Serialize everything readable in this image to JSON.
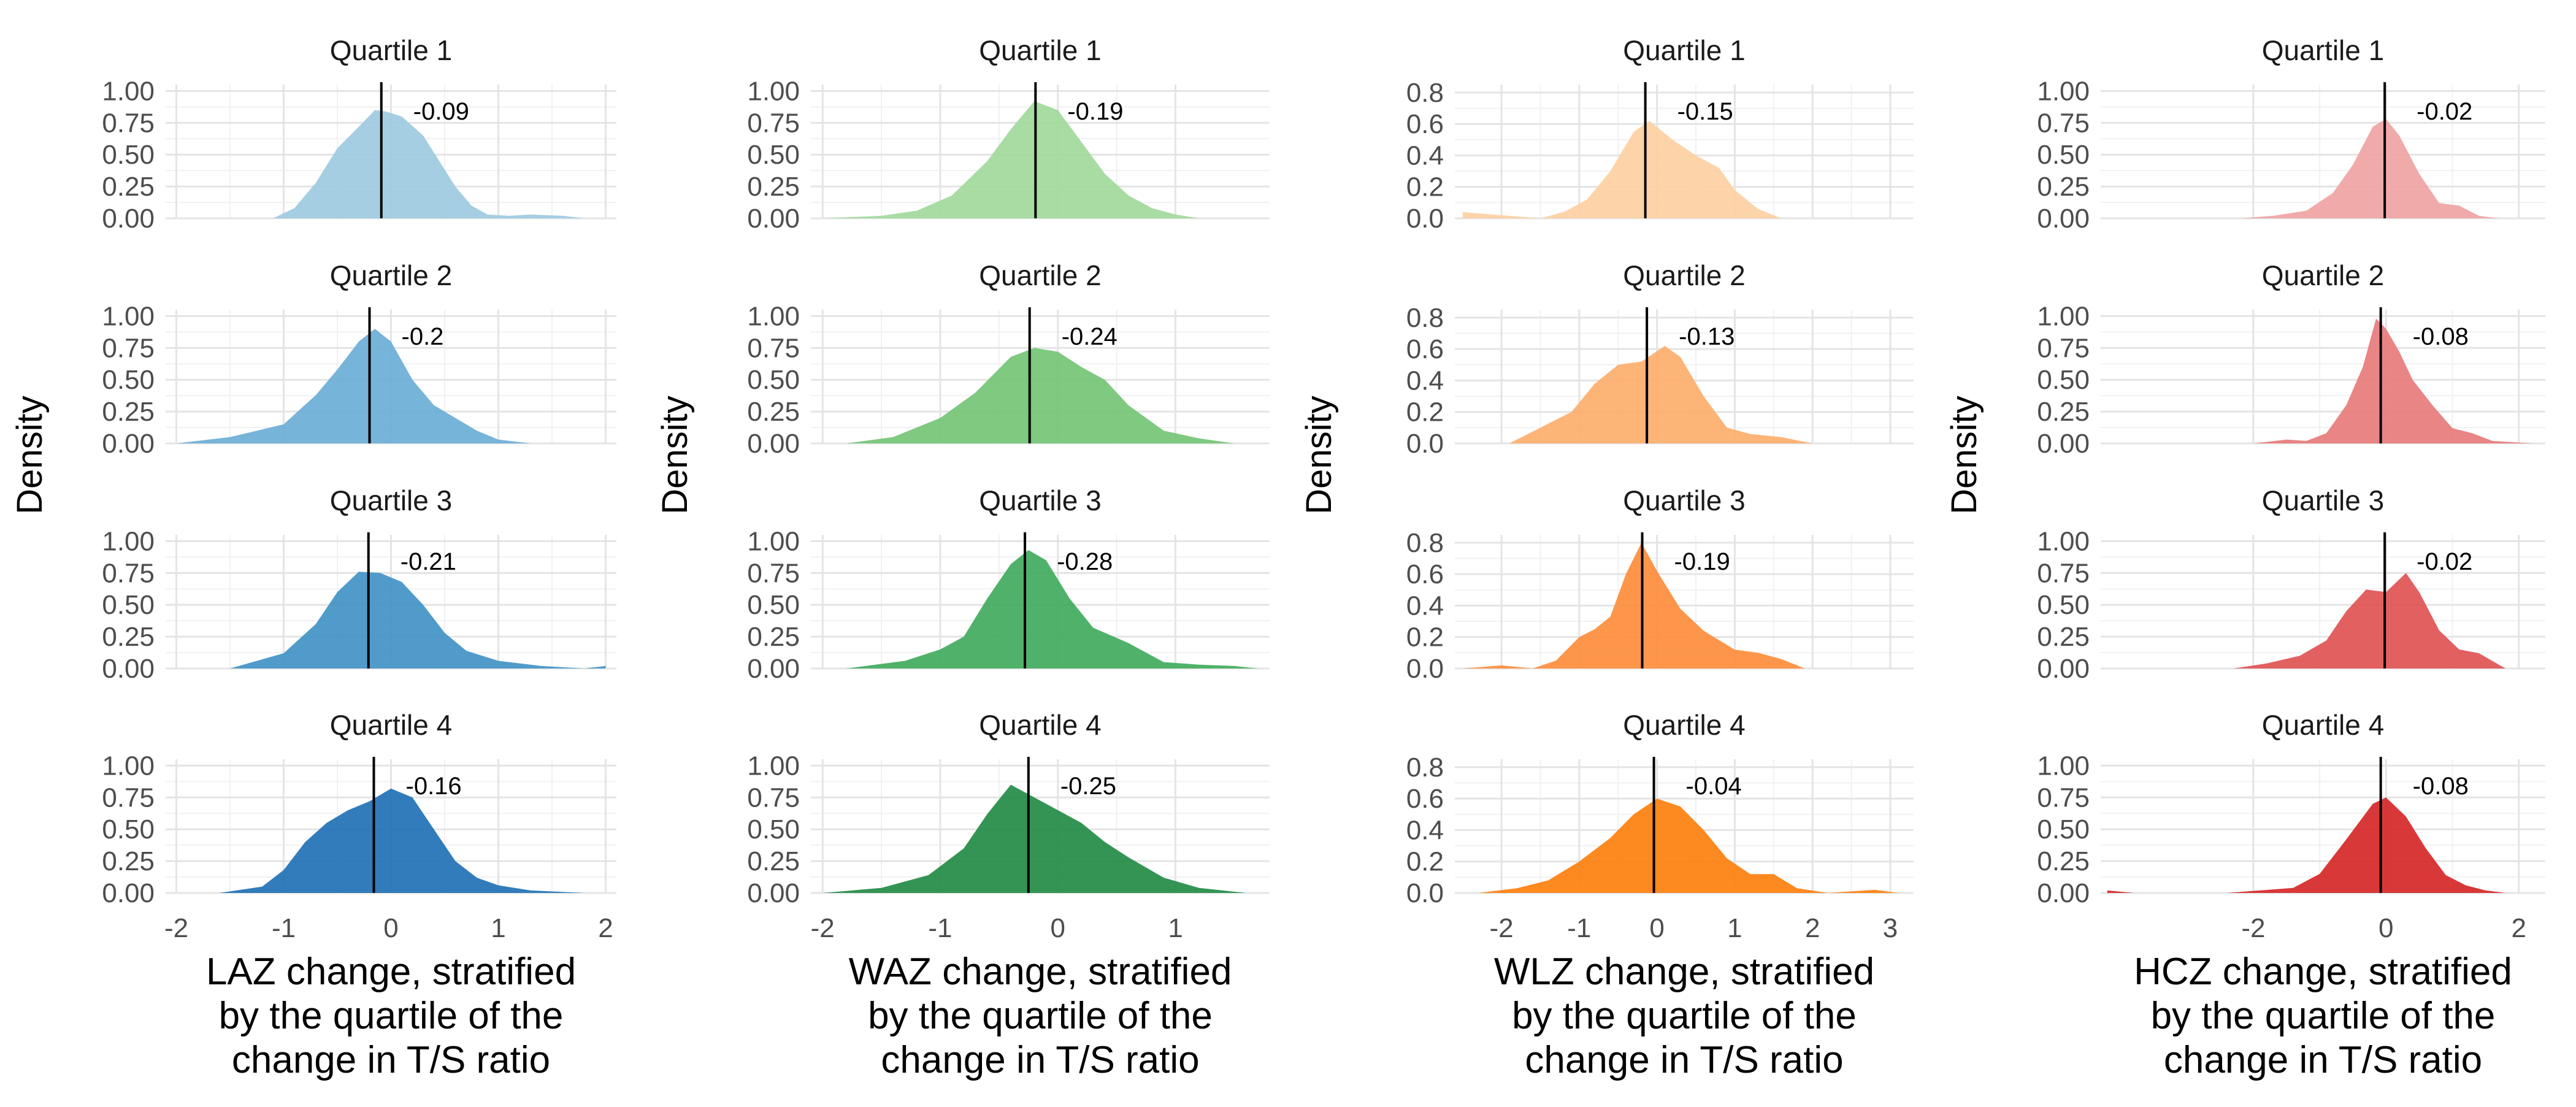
{
  "chart_data": [
    {
      "type": "area",
      "ylabel": "Density",
      "xlabel": "LAZ change, stratified\nby the quartile of the\nchange in T/S ratio",
      "xlim": [
        -2.1,
        2.1
      ],
      "xticks": [
        -2,
        -1,
        0,
        1,
        2
      ],
      "ylim": [
        0,
        1.05
      ],
      "yticks": [
        "0.00",
        "0.25",
        "0.50",
        "0.75",
        "1.00"
      ],
      "grid": true,
      "facets": [
        {
          "title": "Quartile 1",
          "color": "#9ecae1",
          "median_label": "-0.09",
          "median_x": -0.09,
          "x": [
            -1.1,
            -0.9,
            -0.7,
            -0.5,
            -0.3,
            -0.15,
            -0.05,
            0.1,
            0.3,
            0.45,
            0.6,
            0.75,
            0.9,
            1.1,
            1.3,
            1.6,
            1.8
          ],
          "y": [
            0.0,
            0.08,
            0.28,
            0.55,
            0.72,
            0.85,
            0.84,
            0.8,
            0.65,
            0.45,
            0.25,
            0.1,
            0.03,
            0.02,
            0.03,
            0.02,
            0.0
          ]
        },
        {
          "title": "Quartile 2",
          "color": "#6baed6",
          "median_label": "-0.2",
          "median_x": -0.2,
          "x": [
            -2.0,
            -1.5,
            -1.0,
            -0.7,
            -0.5,
            -0.3,
            -0.15,
            0.0,
            0.2,
            0.4,
            0.6,
            0.8,
            1.0,
            1.3
          ],
          "y": [
            0.0,
            0.05,
            0.15,
            0.38,
            0.58,
            0.8,
            0.9,
            0.8,
            0.5,
            0.3,
            0.2,
            0.1,
            0.03,
            0.0
          ]
        },
        {
          "title": "Quartile 3",
          "color": "#4292c6",
          "median_label": "-0.21",
          "median_x": -0.21,
          "x": [
            -1.5,
            -1.0,
            -0.7,
            -0.5,
            -0.3,
            -0.1,
            0.1,
            0.3,
            0.5,
            0.7,
            1.0,
            1.4,
            1.8,
            2.0
          ],
          "y": [
            0.0,
            0.12,
            0.35,
            0.6,
            0.76,
            0.75,
            0.68,
            0.5,
            0.28,
            0.14,
            0.06,
            0.02,
            0.0,
            0.02
          ]
        },
        {
          "title": "Quartile 4",
          "color": "#2171b5",
          "median_label": "-0.16",
          "median_x": -0.16,
          "x": [
            -1.6,
            -1.2,
            -1.0,
            -0.8,
            -0.6,
            -0.4,
            -0.2,
            0.0,
            0.2,
            0.4,
            0.6,
            0.8,
            1.0,
            1.3,
            1.8
          ],
          "y": [
            0.0,
            0.05,
            0.18,
            0.4,
            0.55,
            0.65,
            0.72,
            0.82,
            0.75,
            0.5,
            0.25,
            0.12,
            0.06,
            0.02,
            0.0
          ]
        }
      ]
    },
    {
      "type": "area",
      "ylabel": "Density",
      "xlabel": "WAZ change, stratified\nby the quartile of the\nchange in T/S ratio",
      "xlim": [
        -2.1,
        1.8
      ],
      "xticks": [
        -2,
        -1,
        0,
        1
      ],
      "ylim": [
        0,
        1.05
      ],
      "yticks": [
        "0.00",
        "0.25",
        "0.50",
        "0.75",
        "1.00"
      ],
      "grid": true,
      "facets": [
        {
          "title": "Quartile 1",
          "color": "#a1d99b",
          "median_label": "-0.19",
          "median_x": -0.19,
          "x": [
            -2.0,
            -1.5,
            -1.2,
            -0.9,
            -0.6,
            -0.4,
            -0.2,
            0.0,
            0.2,
            0.4,
            0.6,
            0.8,
            1.0,
            1.2
          ],
          "y": [
            0.0,
            0.02,
            0.06,
            0.18,
            0.45,
            0.7,
            0.92,
            0.85,
            0.6,
            0.35,
            0.18,
            0.08,
            0.03,
            0.0
          ]
        },
        {
          "title": "Quartile 2",
          "color": "#74c476",
          "median_label": "-0.24",
          "median_x": -0.24,
          "x": [
            -1.8,
            -1.4,
            -1.0,
            -0.7,
            -0.4,
            -0.2,
            0.0,
            0.2,
            0.4,
            0.6,
            0.9,
            1.2,
            1.5
          ],
          "y": [
            0.0,
            0.05,
            0.2,
            0.4,
            0.68,
            0.75,
            0.72,
            0.6,
            0.5,
            0.3,
            0.1,
            0.04,
            0.0
          ]
        },
        {
          "title": "Quartile 3",
          "color": "#41ab5d",
          "median_label": "-0.28",
          "median_x": -0.28,
          "x": [
            -1.8,
            -1.3,
            -1.0,
            -0.8,
            -0.6,
            -0.4,
            -0.25,
            -0.1,
            0.1,
            0.3,
            0.6,
            0.9,
            1.2,
            1.5,
            1.7
          ],
          "y": [
            0.0,
            0.06,
            0.15,
            0.25,
            0.55,
            0.82,
            0.93,
            0.85,
            0.55,
            0.32,
            0.2,
            0.05,
            0.03,
            0.02,
            0.0
          ]
        },
        {
          "title": "Quartile 4",
          "color": "#238b45",
          "median_label": "-0.25",
          "median_x": -0.25,
          "x": [
            -2.0,
            -1.5,
            -1.1,
            -0.8,
            -0.6,
            -0.4,
            -0.2,
            0.0,
            0.2,
            0.4,
            0.6,
            0.9,
            1.2,
            1.6
          ],
          "y": [
            0.0,
            0.04,
            0.14,
            0.35,
            0.62,
            0.85,
            0.75,
            0.65,
            0.55,
            0.4,
            0.28,
            0.12,
            0.04,
            0.0
          ]
        }
      ]
    },
    {
      "type": "area",
      "ylabel": "Density",
      "xlabel": "WLZ change, stratified\nby the quartile of the\nchange in T/S ratio",
      "xlim": [
        -2.6,
        3.3
      ],
      "xticks": [
        -2,
        -1,
        0,
        1,
        2,
        3
      ],
      "ylim": [
        0,
        0.85
      ],
      "yticks": [
        "0.0",
        "0.2",
        "0.4",
        "0.6",
        "0.8"
      ],
      "grid": true,
      "facets": [
        {
          "title": "Quartile 1",
          "color": "#fdd0a2",
          "median_label": "-0.15",
          "median_x": -0.15,
          "x": [
            -2.5,
            -2.0,
            -1.5,
            -1.2,
            -0.9,
            -0.6,
            -0.3,
            -0.1,
            0.2,
            0.5,
            0.8,
            1.0,
            1.3,
            1.6
          ],
          "y": [
            0.04,
            0.02,
            0.0,
            0.04,
            0.12,
            0.3,
            0.55,
            0.62,
            0.5,
            0.4,
            0.32,
            0.18,
            0.06,
            0.0
          ]
        },
        {
          "title": "Quartile 2",
          "color": "#fdae6b",
          "median_label": "-0.13",
          "median_x": -0.13,
          "x": [
            -1.9,
            -1.5,
            -1.1,
            -0.8,
            -0.5,
            -0.2,
            0.1,
            0.3,
            0.6,
            0.9,
            1.2,
            1.6,
            2.0
          ],
          "y": [
            0.0,
            0.1,
            0.2,
            0.38,
            0.5,
            0.52,
            0.62,
            0.55,
            0.3,
            0.1,
            0.06,
            0.04,
            0.0
          ]
        },
        {
          "title": "Quartile 3",
          "color": "#fd8d3c",
          "median_label": "-0.19",
          "median_x": -0.19,
          "x": [
            -2.5,
            -2.0,
            -1.6,
            -1.3,
            -1.0,
            -0.8,
            -0.6,
            -0.4,
            -0.2,
            0.0,
            0.3,
            0.6,
            1.0,
            1.3,
            1.6,
            1.9
          ],
          "y": [
            0.0,
            0.02,
            0.0,
            0.05,
            0.2,
            0.25,
            0.33,
            0.6,
            0.8,
            0.62,
            0.38,
            0.24,
            0.12,
            0.1,
            0.06,
            0.0
          ]
        },
        {
          "title": "Quartile 4",
          "color": "#fd7f0e",
          "median_label": "-0.04",
          "median_x": -0.04,
          "x": [
            -2.3,
            -1.8,
            -1.4,
            -1.0,
            -0.6,
            -0.3,
            0.0,
            0.3,
            0.6,
            0.9,
            1.2,
            1.5,
            1.8,
            2.2,
            2.8,
            3.1
          ],
          "y": [
            0.0,
            0.03,
            0.08,
            0.2,
            0.35,
            0.5,
            0.6,
            0.55,
            0.4,
            0.22,
            0.12,
            0.12,
            0.03,
            0.0,
            0.02,
            0.0
          ]
        }
      ]
    },
    {
      "type": "area",
      "ylabel": "Density",
      "xlabel": "HCZ change, stratified\nby the quartile of the\nchange in T/S ratio",
      "xlim": [
        -4.3,
        2.4
      ],
      "xticks": [
        -2,
        0,
        2
      ],
      "ylim": [
        0,
        1.05
      ],
      "yticks": [
        "0.00",
        "0.25",
        "0.50",
        "0.75",
        "1.00"
      ],
      "grid": true,
      "facets": [
        {
          "title": "Quartile 1",
          "color": "#f0a3a3",
          "median_label": "-0.02",
          "median_x": -0.02,
          "x": [
            -2.2,
            -1.7,
            -1.2,
            -0.8,
            -0.5,
            -0.2,
            0.0,
            0.2,
            0.5,
            0.8,
            1.1,
            1.4,
            1.7
          ],
          "y": [
            0.0,
            0.02,
            0.06,
            0.2,
            0.42,
            0.72,
            0.78,
            0.65,
            0.35,
            0.12,
            0.1,
            0.02,
            0.0
          ]
        },
        {
          "title": "Quartile 2",
          "color": "#e77b7b",
          "median_label": "-0.08",
          "median_x": -0.08,
          "x": [
            -2.0,
            -1.5,
            -1.2,
            -0.9,
            -0.6,
            -0.35,
            -0.15,
            0.0,
            0.2,
            0.4,
            0.7,
            1.0,
            1.3,
            1.6,
            2.2
          ],
          "y": [
            0.0,
            0.03,
            0.02,
            0.08,
            0.3,
            0.6,
            0.98,
            0.9,
            0.72,
            0.5,
            0.3,
            0.12,
            0.08,
            0.02,
            0.0
          ]
        },
        {
          "title": "Quartile 3",
          "color": "#e05252",
          "median_label": "-0.02",
          "median_x": -0.02,
          "x": [
            -2.3,
            -1.8,
            -1.3,
            -0.9,
            -0.6,
            -0.3,
            0.0,
            0.3,
            0.5,
            0.8,
            1.1,
            1.4,
            1.8
          ],
          "y": [
            0.0,
            0.04,
            0.1,
            0.22,
            0.45,
            0.62,
            0.6,
            0.75,
            0.6,
            0.3,
            0.15,
            0.12,
            0.0
          ]
        },
        {
          "title": "Quartile 4",
          "color": "#d62728",
          "median_label": "-0.08",
          "median_x": -0.08,
          "x": [
            -4.2,
            -3.8,
            -3.4,
            -2.4,
            -1.9,
            -1.4,
            -1.0,
            -0.6,
            -0.2,
            0.0,
            0.3,
            0.6,
            0.9,
            1.2,
            1.5,
            1.8
          ],
          "y": [
            0.02,
            0.0,
            0.0,
            0.0,
            0.02,
            0.04,
            0.15,
            0.42,
            0.7,
            0.75,
            0.6,
            0.35,
            0.14,
            0.06,
            0.02,
            0.0
          ]
        }
      ]
    }
  ]
}
